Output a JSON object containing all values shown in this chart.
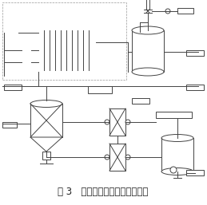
{
  "title": "图 3   膜法脱硝预处理工艺流程图",
  "title_fontsize": 8.5,
  "bg_color": "#ffffff",
  "line_color": "#444444",
  "fig_width": 2.59,
  "fig_height": 2.57,
  "dpi": 100
}
